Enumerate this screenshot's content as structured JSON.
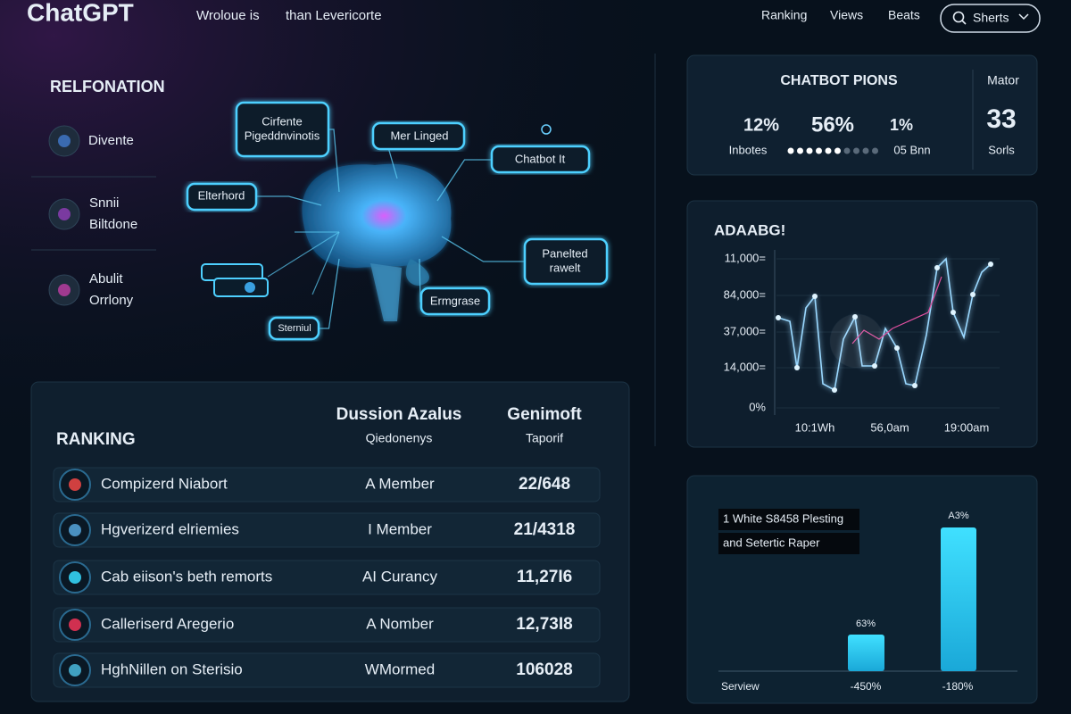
{
  "header": {
    "logo": "ChatGPT",
    "nav": [
      "Wroloue is",
      "than Levericorte"
    ],
    "right_nav": [
      "Ranking",
      "Views",
      "Beats"
    ],
    "search": "Sherts"
  },
  "sidebar": {
    "title": "RELFONATION",
    "items": [
      [
        "Divente"
      ],
      [
        "Snnii",
        "Biltdone"
      ],
      [
        "Abulit",
        "Orrlony"
      ]
    ]
  },
  "diagram": {
    "nodes": [
      {
        "label": [
          "Cirfente",
          "Pigeddnvinotis"
        ]
      },
      {
        "label": [
          "Mer Linged"
        ]
      },
      {
        "label": [
          "Chatbot It"
        ]
      },
      {
        "label": [
          "Elterhord"
        ]
      },
      {
        "label": [
          "Panelted",
          "rawelt"
        ]
      },
      {
        "label": [
          "Ermgrase"
        ]
      },
      {
        "label": [
          "Sterniul"
        ]
      }
    ]
  },
  "stats": {
    "title": "CHATBOT PIONS",
    "values": [
      "12%",
      "56%",
      "1%"
    ],
    "captions": [
      "Inbotes",
      "05 Bnn"
    ],
    "side_label": "Mator",
    "side_value": "33",
    "side_caption": "Sorls"
  },
  "line_panel": {
    "title": "ADAABG!",
    "y_labels": [
      "11,000=",
      "84,000=",
      "37,000=",
      "14,000=",
      "0%"
    ],
    "x_labels": [
      "10:1Wh",
      "56,0am",
      "19:00am"
    ]
  },
  "bar_panel": {
    "legend": [
      "1 White S8458 Plesting",
      "and Setertic Raper"
    ],
    "bar_labels": [
      "63%",
      "A3%"
    ],
    "x_labels": [
      "Serview",
      "-450%",
      "-180%"
    ]
  },
  "ranking": {
    "title": "RANKING",
    "columns": [
      [
        "Dussion Azalus",
        "Qiedonenys"
      ],
      [
        "Genimoft",
        "Taporif"
      ]
    ],
    "rows": [
      [
        "Compizerd Niabort",
        "A Member",
        "22/648"
      ],
      [
        "Hgverizerd elriemies",
        "I Member",
        "21/4318"
      ],
      [
        "Cab eiison's beth remorts",
        "AI Curancy",
        "11,27I6"
      ],
      [
        "Calleriserd Aregerio",
        "A Nomber",
        "12,73I8"
      ],
      [
        "HghNillen on Sterisio",
        "WMormed",
        "106028"
      ]
    ]
  }
}
